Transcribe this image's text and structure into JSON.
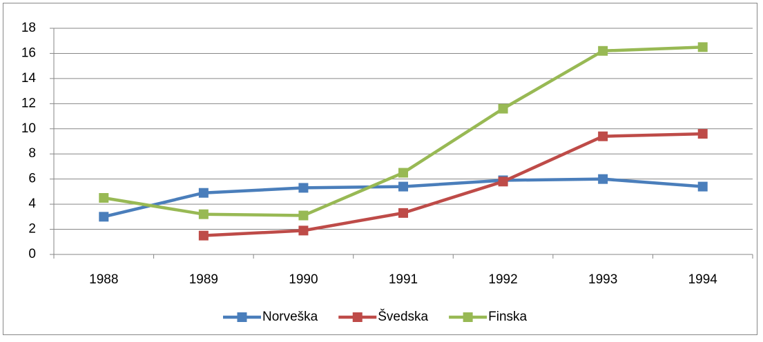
{
  "chart_data": {
    "type": "line",
    "categories": [
      "1988",
      "1989",
      "1990",
      "1991",
      "1992",
      "1993",
      "1994"
    ],
    "series": [
      {
        "name": "Norveška",
        "color": "#4a7ebb",
        "values": [
          3.0,
          4.9,
          5.3,
          5.4,
          5.9,
          6.0,
          5.4
        ]
      },
      {
        "name": "Švedska",
        "color": "#be4b48",
        "values": [
          null,
          1.5,
          1.9,
          3.3,
          5.8,
          9.4,
          9.6
        ]
      },
      {
        "name": "Finska",
        "color": "#98b954",
        "values": [
          4.5,
          3.2,
          3.1,
          6.5,
          11.6,
          16.2,
          16.5
        ]
      }
    ],
    "ylim": [
      0,
      18
    ],
    "yticks": [
      0,
      2,
      4,
      6,
      8,
      10,
      12,
      14,
      16,
      18
    ],
    "grid": true,
    "legend": "bottom"
  }
}
